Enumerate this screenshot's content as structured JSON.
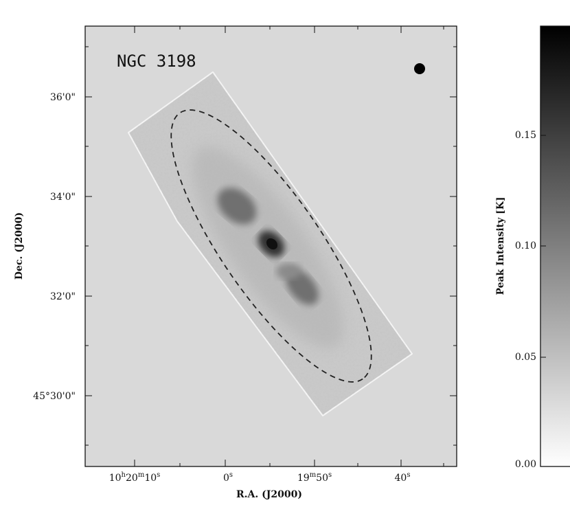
{
  "chart_data": {
    "type": "heatmap",
    "title": "NGC 3198",
    "xlabel": "R.A. (J2000)",
    "ylabel": "Dec. (J2000)",
    "x_ticks": [
      {
        "text": "10h20m10s",
        "parts": [
          [
            "10",
            ""
          ],
          [
            "h",
            "sup"
          ],
          [
            "20",
            ""
          ],
          [
            "m",
            "sup"
          ],
          [
            "10",
            ""
          ],
          [
            "s",
            "sup"
          ]
        ]
      },
      {
        "text": "0s",
        "parts": [
          [
            "0",
            ""
          ],
          [
            "s",
            "sup"
          ]
        ]
      },
      {
        "text": "19m50s",
        "parts": [
          [
            "19",
            ""
          ],
          [
            "m",
            "sup"
          ],
          [
            "50",
            ""
          ],
          [
            "s",
            "sup"
          ]
        ]
      },
      {
        "text": "40s",
        "parts": [
          [
            "40",
            ""
          ],
          [
            "s",
            "sup"
          ]
        ]
      }
    ],
    "y_ticks": [
      "36'0\"",
      "34'0\"",
      "32'0\"",
      "45°30'0\""
    ],
    "colorbar": {
      "label": "Peak Intensity [K]",
      "ticks": [
        "0.00",
        "0.05",
        "0.10",
        "0.15"
      ],
      "range": [
        0.0,
        0.19
      ]
    },
    "beam_marker": "filled circle",
    "ellipse_style": "dashed",
    "colors": {
      "background": "#d9d9d9",
      "emission": "#000000"
    }
  }
}
